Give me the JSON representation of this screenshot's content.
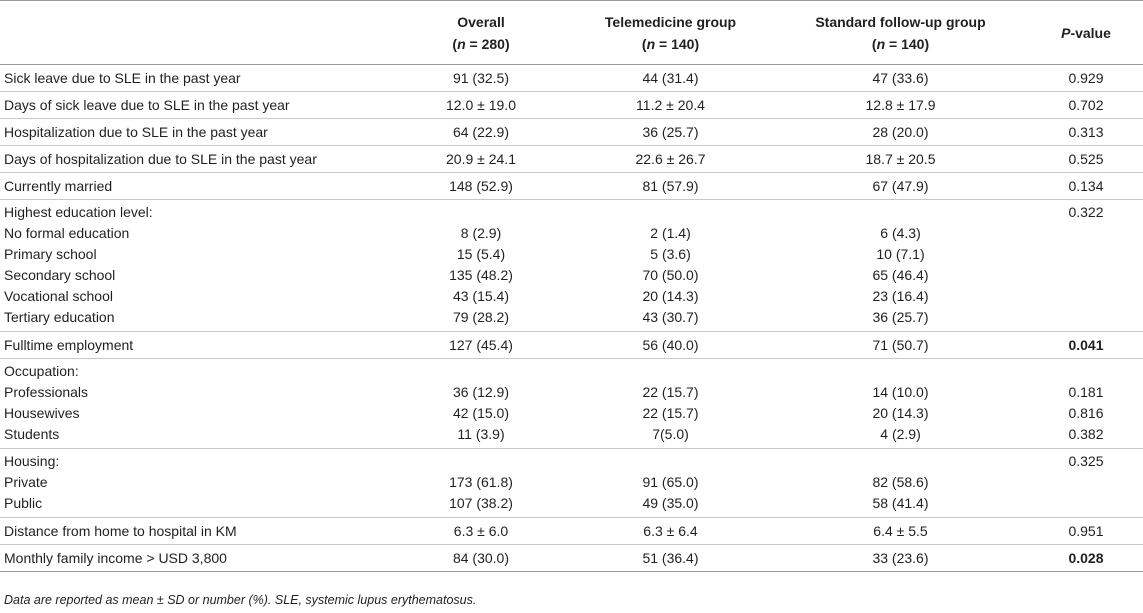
{
  "headers": {
    "col0": "",
    "overall": {
      "title": "Overall",
      "n_prefix": "(",
      "n_var": "n",
      "n_value": " = 280)"
    },
    "telemedicine": {
      "title": "Telemedicine group",
      "n_prefix": "(",
      "n_var": "n",
      "n_value": " = 140)"
    },
    "standard": {
      "title": "Standard follow-up group",
      "n_prefix": "(",
      "n_var": "n",
      "n_value": " = 140)"
    },
    "pvalue": {
      "p": "P",
      "rest": "-value"
    }
  },
  "rows": [
    {
      "label": "Sick leave due to SLE in the past year",
      "overall": "91 (32.5)",
      "tele": "44 (31.4)",
      "std": "47 (33.6)",
      "p": "0.929"
    },
    {
      "label": "Days of sick leave due to SLE in the past year",
      "overall": "12.0 ± 19.0",
      "tele": "11.2 ± 20.4",
      "std": "12.8 ± 17.9",
      "p": "0.702"
    },
    {
      "label": "Hospitalization due to SLE in the past year",
      "overall": "64 (22.9)",
      "tele": "36 (25.7)",
      "std": "28 (20.0)",
      "p": "0.313"
    },
    {
      "label": "Days of hospitalization due to SLE in the past year",
      "overall": "20.9 ± 24.1",
      "tele": "22.6 ± 26.7",
      "std": "18.7 ± 20.5",
      "p": "0.525"
    },
    {
      "label": "Currently married",
      "overall": "148 (52.9)",
      "tele": "81 (57.9)",
      "std": "67 (47.9)",
      "p": "0.134"
    }
  ],
  "education": {
    "header": "Highest education level:",
    "p": "0.322",
    "items": [
      {
        "label": "No formal education",
        "overall": "8 (2.9)",
        "tele": "2 (1.4)",
        "std": "6 (4.3)"
      },
      {
        "label": "Primary school",
        "overall": "15 (5.4)",
        "tele": "5 (3.6)",
        "std": "10 (7.1)"
      },
      {
        "label": "Secondary school",
        "overall": "135 (48.2)",
        "tele": "70 (50.0)",
        "std": "65 (46.4)"
      },
      {
        "label": "Vocational school",
        "overall": "43 (15.4)",
        "tele": "20 (14.3)",
        "std": "23 (16.4)"
      },
      {
        "label": "Tertiary education",
        "overall": "79 (28.2)",
        "tele": "43 (30.7)",
        "std": "36 (25.7)"
      }
    ]
  },
  "employment": {
    "label": "Fulltime employment",
    "overall": "127 (45.4)",
    "tele": "56 (40.0)",
    "std": "71 (50.7)",
    "p": "0.041"
  },
  "occupation": {
    "header": "Occupation:",
    "items": [
      {
        "label": "Professionals",
        "overall": "36 (12.9)",
        "tele": "22 (15.7)",
        "std": "14 (10.0)",
        "p": "0.181"
      },
      {
        "label": "Housewives",
        "overall": "42 (15.0)",
        "tele": "22 (15.7)",
        "std": "20 (14.3)",
        "p": "0.816"
      },
      {
        "label": "Students",
        "overall": "11 (3.9)",
        "tele": "7(5.0)",
        "std": "4 (2.9)",
        "p": "0.382"
      }
    ]
  },
  "housing": {
    "header": "Housing:",
    "p": "0.325",
    "items": [
      {
        "label": "Private",
        "overall": "173 (61.8)",
        "tele": "91 (65.0)",
        "std": "82 (58.6)"
      },
      {
        "label": "Public",
        "overall": "107 (38.2)",
        "tele": "49 (35.0)",
        "std": "58 (41.4)"
      }
    ]
  },
  "distance": {
    "label": "Distance from home to hospital in KM",
    "overall": "6.3 ± 6.0",
    "tele": "6.3 ± 6.4",
    "std": "6.4 ± 5.5",
    "p": "0.951"
  },
  "income": {
    "label": "Monthly family income > USD 3,800",
    "overall": "84 (30.0)",
    "tele": "51 (36.4)",
    "std": "33 (23.6)",
    "p": "0.028"
  },
  "footnote": "Data are reported as mean ± SD or number (%). SLE, systemic lupus erythematosus."
}
